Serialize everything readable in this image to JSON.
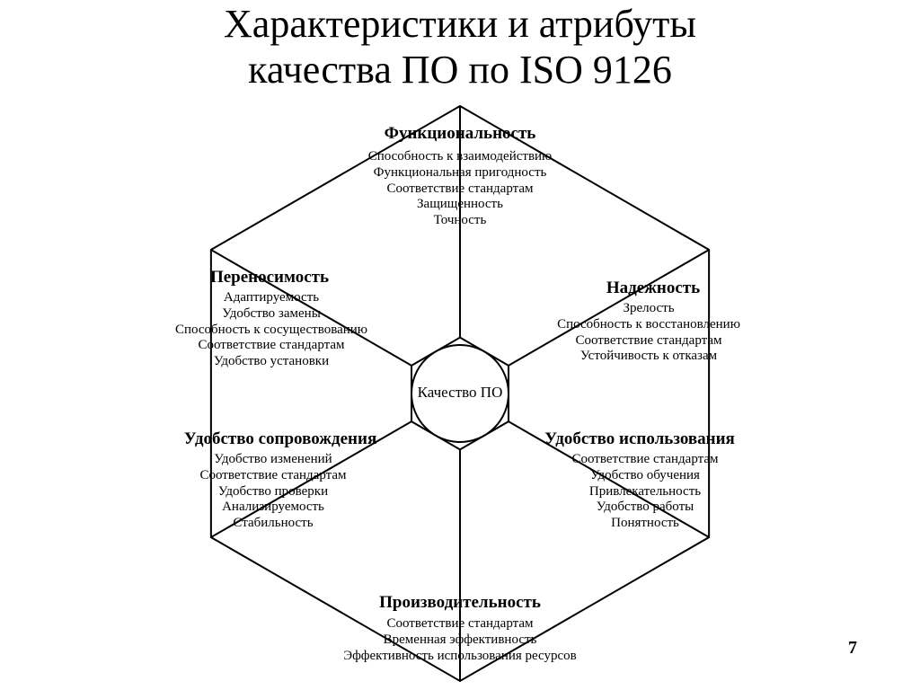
{
  "title_line1": "Характеристики и атрибуты",
  "title_line2": "качества ПО по ISO 9126",
  "center_label": "Качество ПО",
  "page_number": "7",
  "diagram": {
    "type": "radial-hexagon",
    "stroke_color": "#000000",
    "stroke_width": 2,
    "background_color": "#ffffff",
    "heading_fontsize": 19,
    "body_fontsize": 15,
    "center_fontsize": 17,
    "hex_radius_outer": 320,
    "circle_radius": 54,
    "sectors": [
      {
        "key": "functionality",
        "heading": "Функциональность",
        "items": [
          "Способность к взаимодействию",
          "Функциональная пригодность",
          "Соответствие стандартам",
          "Защищенность",
          "Точность"
        ]
      },
      {
        "key": "reliability",
        "heading": "Надежность",
        "items": [
          "Зрелость",
          "Способность к восстановлению",
          "Соответствие стандартам",
          "Устойчивость к отказам"
        ]
      },
      {
        "key": "usability",
        "heading": "Удобство использования",
        "items": [
          "Соответствие стандартам",
          "Удобство обучения",
          "Привлекательность",
          "Удобство работы",
          "Понятность"
        ]
      },
      {
        "key": "performance",
        "heading": "Производительность",
        "items": [
          "Соответствие стандартам",
          "Временная эффективность",
          "Эффективность использования ресурсов"
        ]
      },
      {
        "key": "maintainability",
        "heading": "Удобство сопровождения",
        "items": [
          "Удобство изменений",
          "Соответствие стандартам",
          "Удобство проверки",
          "Анализируемость",
          "Стабильность"
        ]
      },
      {
        "key": "portability",
        "heading": "Переносимость",
        "items": [
          "Адаптируемость",
          "Удобство замены",
          "Способность к сосуществованию",
          "Соответствие стандартам",
          "Удобство установки"
        ]
      }
    ]
  }
}
